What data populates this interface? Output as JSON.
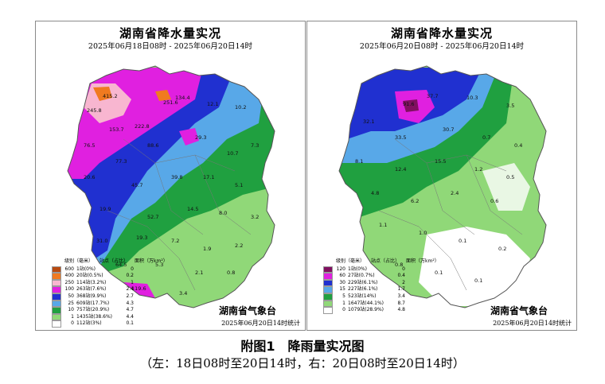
{
  "left_map": {
    "title": "湖南省降水量实况",
    "subtitle": "2025年06月18日08时 - 2025年06月20日14时",
    "legend": {
      "col_level": "级别（毫米）",
      "col_stations": "站点（占比）",
      "col_area": "面积（万km²）",
      "rows": [
        {
          "level": "600",
          "stations": "1站(0%)",
          "area": "0",
          "color": "#b84a10"
        },
        {
          "level": "400",
          "stations": "20站(0.5%)",
          "area": "0.2",
          "color": "#f07a20"
        },
        {
          "level": "250",
          "stations": "114站(3.2%)",
          "area": "1",
          "color": "#f8b6d0"
        },
        {
          "level": "100",
          "stations": "263站(7.6%)",
          "area": "2.4",
          "color": "#e020e0"
        },
        {
          "level": "50",
          "stations": "368站(9.9%)",
          "area": "2.7",
          "color": "#2030d0"
        },
        {
          "level": "25",
          "stations": "609站(17.7%)",
          "area": "4.3",
          "color": "#58a8e8"
        },
        {
          "level": "10",
          "stations": "757站(20.9%)",
          "area": "4.7",
          "color": "#20a040"
        },
        {
          "level": "1",
          "stations": "1435站(38.6%)",
          "area": "4.4",
          "color": "#90d878"
        },
        {
          "level": "0",
          "stations": "112站(3%)",
          "area": "0.1",
          "color": "#ffffff"
        }
      ]
    },
    "agency": "湖南省气象台",
    "stat_time": "2025年06月20日14时统计"
  },
  "right_map": {
    "title": "湖南省降水量实况",
    "subtitle": "2025年06月20日08时 - 2025年06月20日14时",
    "legend": {
      "col_level": "级别（毫米）",
      "col_stations": "站点（占比）",
      "col_area": "面积（万km²）",
      "rows": [
        {
          "level": "120",
          "stations": "1站(0%)",
          "area": "0",
          "color": "#801060"
        },
        {
          "level": "60",
          "stations": "27站(0.7%)",
          "area": "0.4",
          "color": "#e020e0"
        },
        {
          "level": "30",
          "stations": "229站(6.1%)",
          "area": "2",
          "color": "#2030d0"
        },
        {
          "level": "15",
          "stations": "227站(6.1%)",
          "area": "1.7",
          "color": "#58a8e8"
        },
        {
          "level": "5",
          "stations": "523站(14%)",
          "area": "3.4",
          "color": "#20a040"
        },
        {
          "level": "1",
          "stations": "1647站(44.1%)",
          "area": "8.7",
          "color": "#90d878"
        },
        {
          "level": "0",
          "stations": "1079站(28.9%)",
          "area": "4.8",
          "color": "#ffffff"
        }
      ]
    },
    "agency": "湖南省气象台",
    "stat_time": "2025年06月20日14时统计"
  },
  "caption": {
    "title": "附图1　降雨量实况图",
    "subtitle": "（左：18日08时至20日14时，右：20日08时至20日14时）"
  }
}
